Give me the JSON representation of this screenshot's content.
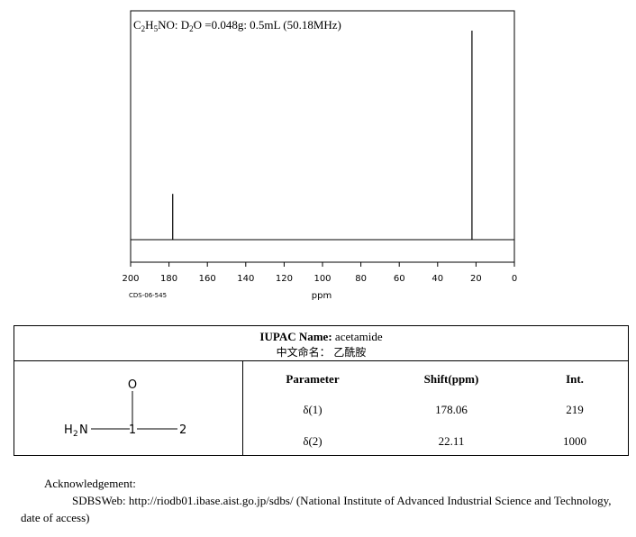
{
  "spectrum": {
    "formula_html": "C<sub>2</sub>H<sub>5</sub>NO: D<sub>2</sub>O =0.048g: 0.5mL (50.18MHz)",
    "formula_parts": [
      "C",
      "2",
      "H",
      "5",
      "NO: D",
      "2",
      "O =0.048g: 0.5mL (50.18MHz)"
    ],
    "code_label": "CDS-06-545",
    "x_unit": "ppm"
  },
  "chart_data": {
    "type": "line",
    "title": "C2H5NO: D2O =0.048g: 0.5mL (50.18MHz)",
    "xlabel": "ppm",
    "ylabel": "",
    "xlim": [
      200,
      0
    ],
    "x_reversed": true,
    "x_ticks": [
      200,
      180,
      160,
      140,
      120,
      100,
      80,
      60,
      40,
      20,
      0
    ],
    "ylim": [
      0,
      1000
    ],
    "grid": false,
    "peaks": [
      {
        "shift": 178.06,
        "intensity": 219
      },
      {
        "shift": 22.11,
        "intensity": 1000
      }
    ]
  },
  "info": {
    "iupac_label": "IUPAC Name:",
    "iupac_value": "acetamide",
    "cn_name": "中文命名： 乙酰胺",
    "structure": {
      "O": "O",
      "H2N_H": "H",
      "H2N_2": "2",
      "H2N_N": "N",
      "C1": "1",
      "C2": "2"
    },
    "headers": [
      "Parameter",
      "Shift(ppm)",
      "Int."
    ],
    "rows": [
      [
        "δ(1)",
        "178.06",
        "219"
      ],
      [
        "δ(2)",
        "22.11",
        "1000"
      ]
    ]
  },
  "acknowledgement": {
    "line1": "Acknowledgement:",
    "line2": "SDBSWeb: http://riodb01.ibase.aist.go.jp/sdbs/ (National Institute of Advanced Industrial Science and Technology, date of access)"
  }
}
